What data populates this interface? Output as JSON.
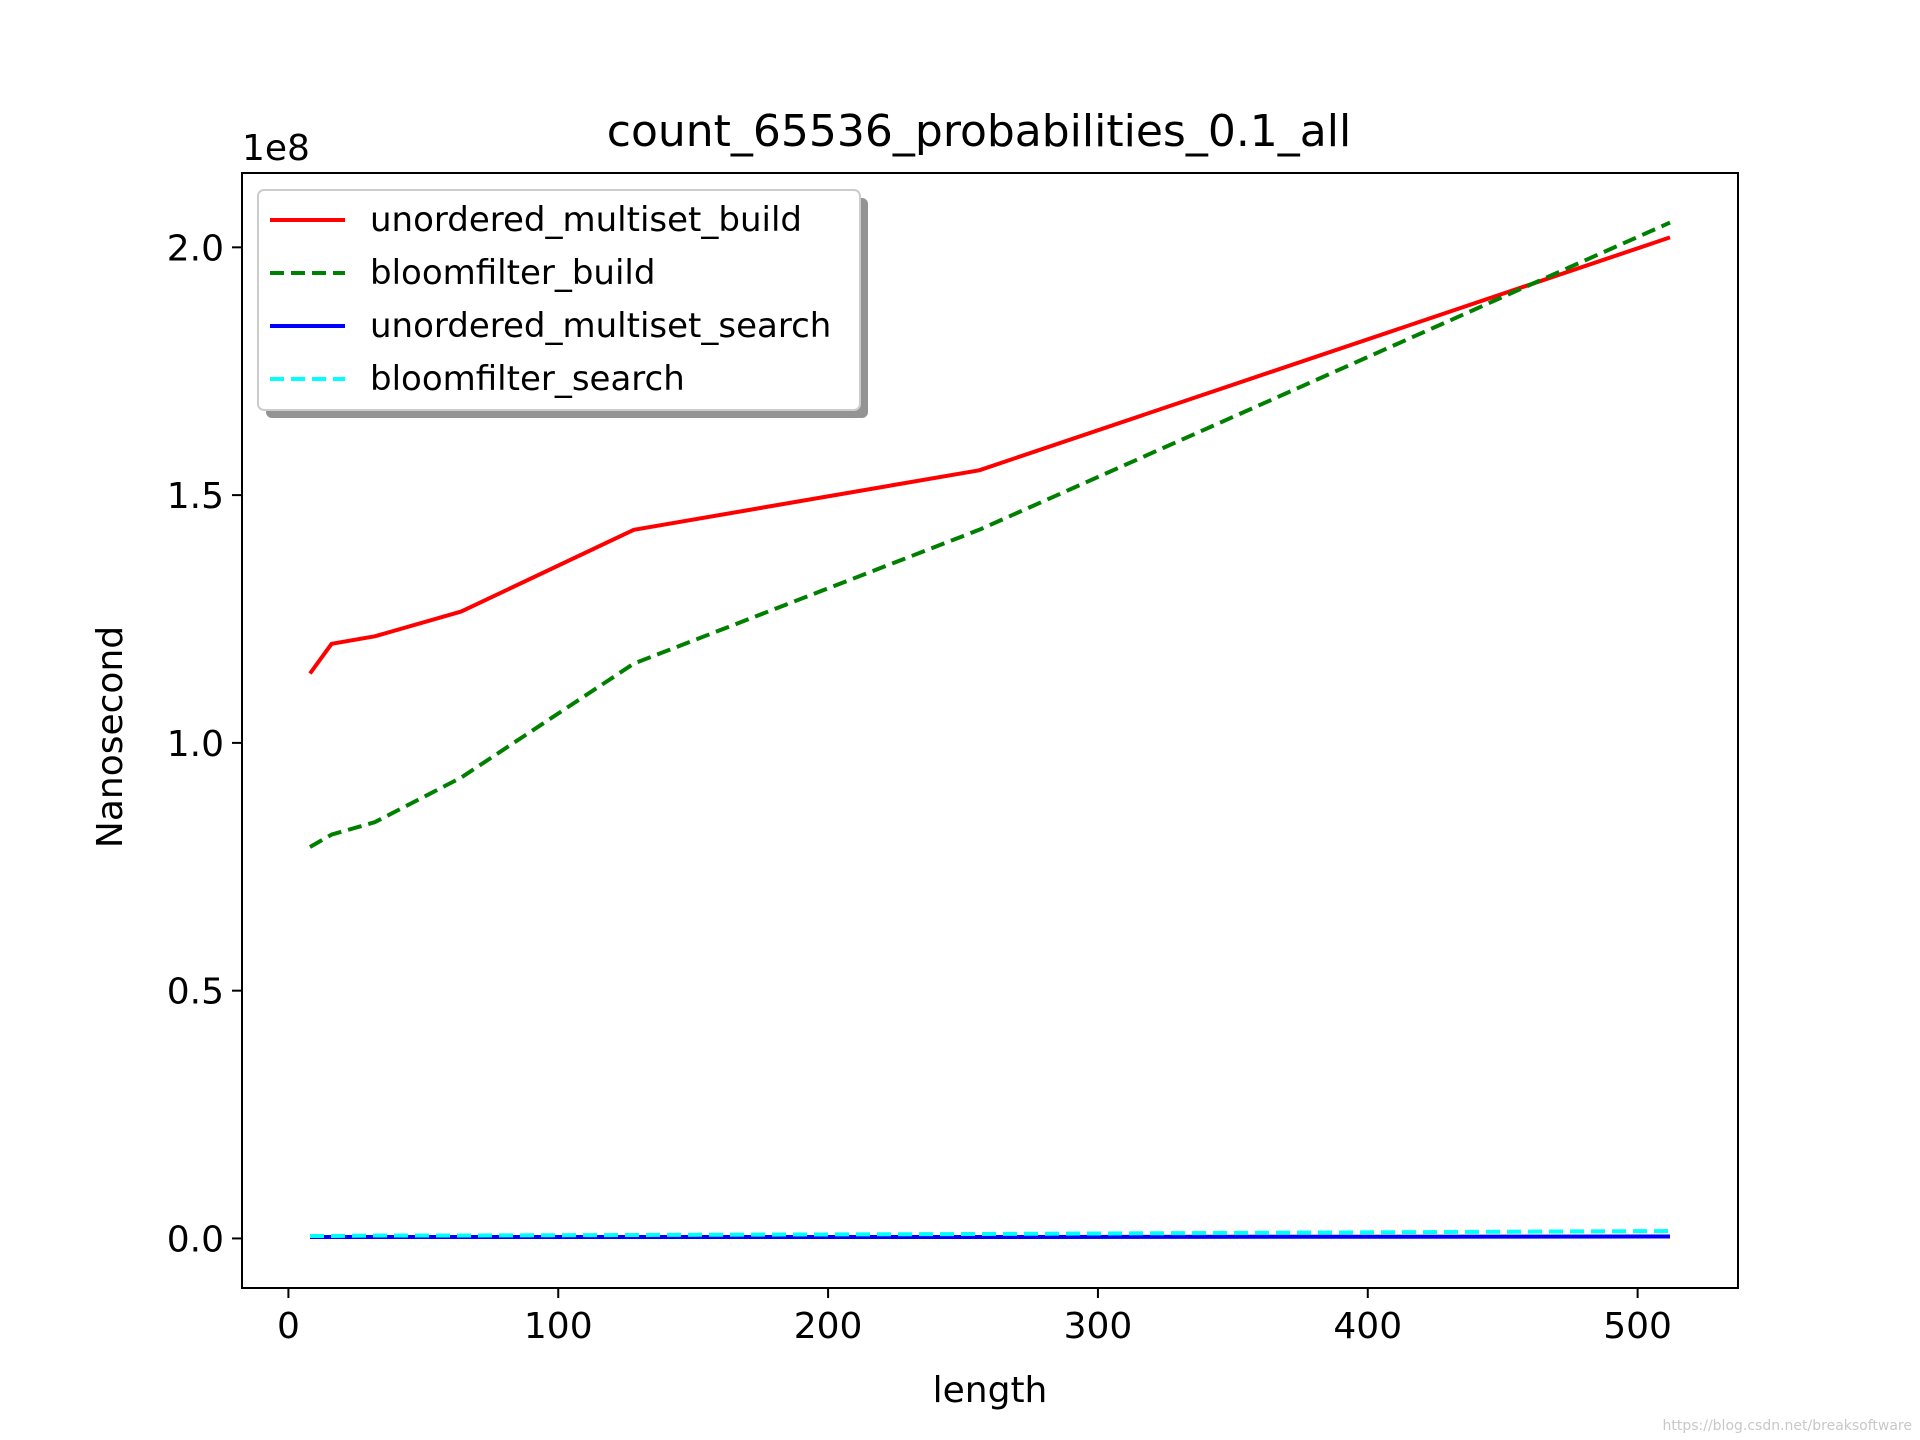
{
  "chart_data": {
    "type": "line",
    "title": "count_65536_probabilities_0.1_all",
    "xlabel": "length",
    "ylabel": "Nanosecond",
    "y_offset_label": "1e8",
    "x": [
      8,
      16,
      32,
      64,
      128,
      256,
      512
    ],
    "xlim": [
      -17.2,
      537.2
    ],
    "ylim": [
      -0.1,
      2.15
    ],
    "x_ticks": [
      0,
      100,
      200,
      300,
      400,
      500
    ],
    "x_tick_labels": [
      "0",
      "100",
      "200",
      "300",
      "400",
      "500"
    ],
    "y_ticks": [
      0.0,
      0.5,
      1.0,
      1.5,
      2.0
    ],
    "y_tick_labels": [
      "0.0",
      "0.5",
      "1.0",
      "1.5",
      "2.0"
    ],
    "grid": false,
    "legend_position": "upper-left",
    "series": [
      {
        "name": "unordered_multiset_build",
        "color": "#ff0000",
        "dash": "solid",
        "values": [
          1.14,
          1.2,
          1.215,
          1.265,
          1.43,
          1.55,
          2.02
        ]
      },
      {
        "name": "bloomfilter_build",
        "color": "#008000",
        "dash": "dashed",
        "values": [
          0.79,
          0.815,
          0.84,
          0.93,
          1.16,
          1.43,
          2.05
        ]
      },
      {
        "name": "unordered_multiset_search",
        "color": "#0000ff",
        "dash": "solid",
        "values": [
          0.003,
          0.003,
          0.003,
          0.003,
          0.003,
          0.003,
          0.004
        ]
      },
      {
        "name": "bloomfilter_search",
        "color": "#00ffff",
        "dash": "dashed",
        "values": [
          0.005,
          0.005,
          0.006,
          0.006,
          0.007,
          0.009,
          0.015
        ]
      }
    ]
  },
  "watermark": "https://blog.csdn.net/breaksoftware"
}
